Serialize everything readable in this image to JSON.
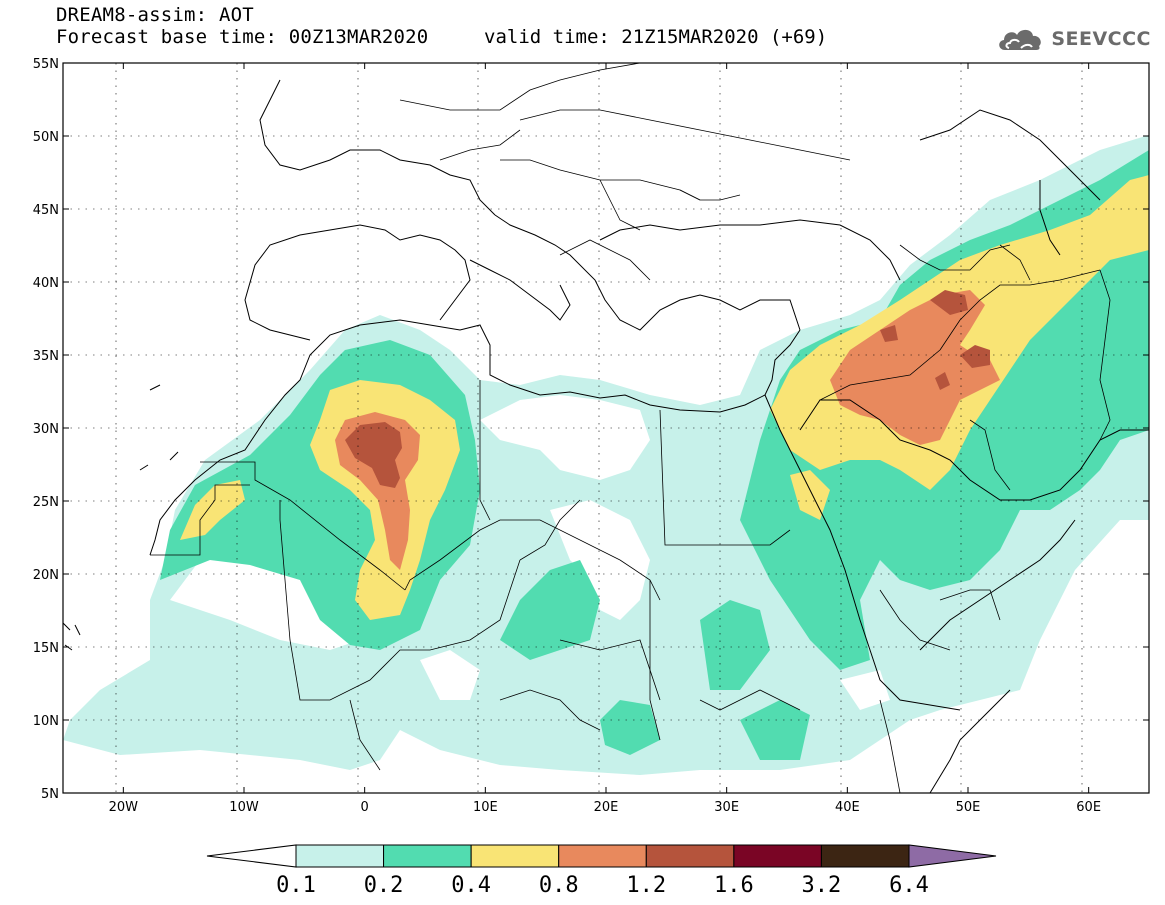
{
  "header": {
    "title": "DREAM8-assim: AOT",
    "base_time": "Forecast base time: 00Z13MAR2020",
    "valid_time": "valid time: 21Z15MAR2020 (+69)"
  },
  "logo": {
    "icon": "cloud-icon",
    "text": "SEEVCCC",
    "color": "#6b6b6b"
  },
  "map": {
    "lon_range": [
      -25,
      65
    ],
    "lat_range": [
      5,
      55
    ],
    "x_ticks": [
      {
        "lon": -20,
        "label": "20W"
      },
      {
        "lon": -10,
        "label": "10W"
      },
      {
        "lon": 0,
        "label": "0"
      },
      {
        "lon": 10,
        "label": "10E"
      },
      {
        "lon": 20,
        "label": "20E"
      },
      {
        "lon": 30,
        "label": "30E"
      },
      {
        "lon": 40,
        "label": "40E"
      },
      {
        "lon": 50,
        "label": "50E"
      },
      {
        "lon": 60,
        "label": "60E"
      }
    ],
    "y_ticks": [
      {
        "lat": 55,
        "label": "55N"
      },
      {
        "lat": 50,
        "label": "50N"
      },
      {
        "lat": 45,
        "label": "45N"
      },
      {
        "lat": 40,
        "label": "40N"
      },
      {
        "lat": 35,
        "label": "35N"
      },
      {
        "lat": 30,
        "label": "30N"
      },
      {
        "lat": 25,
        "label": "25N"
      },
      {
        "lat": 20,
        "label": "20N"
      },
      {
        "lat": 15,
        "label": "15N"
      },
      {
        "lat": 10,
        "label": "10N"
      },
      {
        "lat": 5,
        "label": "5N"
      }
    ],
    "grid": true
  },
  "colorbar": {
    "levels": [
      "0.1",
      "0.2",
      "0.4",
      "0.8",
      "1.2",
      "1.6",
      "3.2",
      "6.4"
    ],
    "colors": [
      "#c7f1ea",
      "#52dcb0",
      "#f9e475",
      "#e8895d",
      "#b5543c",
      "#7a0525",
      "#3c2513"
    ],
    "under_color": "#ffffff",
    "over_color": "#8e6ba5"
  }
}
